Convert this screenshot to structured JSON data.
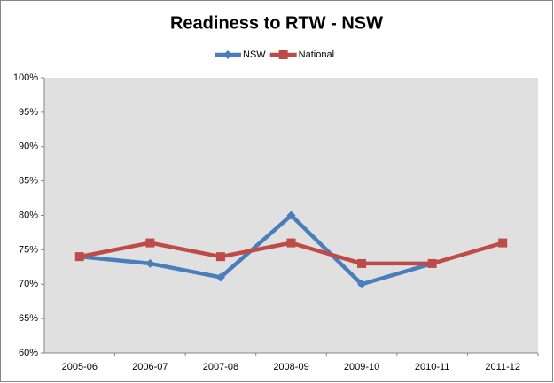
{
  "chart_data": {
    "type": "line",
    "title": "Readiness to RTW - NSW",
    "categories": [
      "2005-06",
      "2006-07",
      "2007-08",
      "2008-09",
      "2009-10",
      "2010-11",
      "2011-12"
    ],
    "series": [
      {
        "name": "NSW",
        "color": "#4a7ebb",
        "marker": "diamond",
        "values": [
          74,
          73,
          71,
          80,
          70,
          73,
          null
        ]
      },
      {
        "name": "National",
        "color": "#be4b48",
        "marker": "square",
        "values": [
          74,
          76,
          74,
          76,
          73,
          73,
          76
        ]
      }
    ],
    "ylim": [
      60,
      100
    ],
    "yticks": [
      {
        "value": 60,
        "label": "60%"
      },
      {
        "value": 65,
        "label": "65%"
      },
      {
        "value": 70,
        "label": "70%"
      },
      {
        "value": 75,
        "label": "75%"
      },
      {
        "value": 80,
        "label": "80%"
      },
      {
        "value": 85,
        "label": "85%"
      },
      {
        "value": 90,
        "label": "90%"
      },
      {
        "value": 95,
        "label": "95%"
      },
      {
        "value": 100,
        "label": "100%"
      }
    ],
    "grid": false,
    "legend": "top"
  }
}
